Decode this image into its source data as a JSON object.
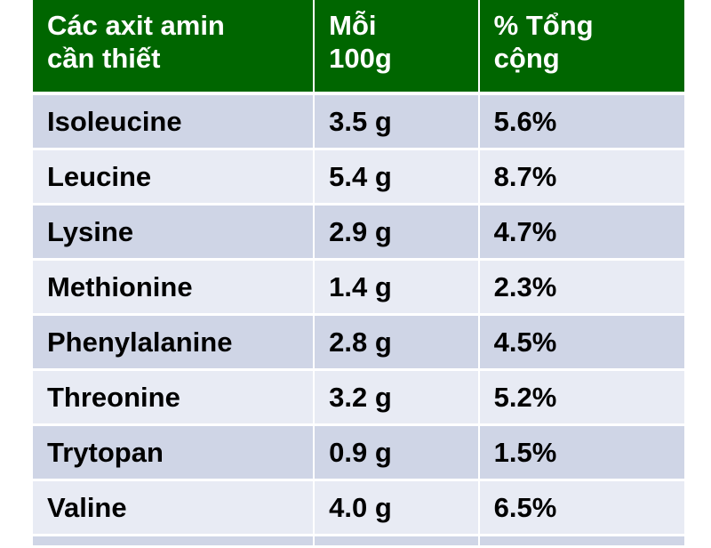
{
  "colors": {
    "header_bg": "#006600",
    "row_odd": "#CFD5E6",
    "row_even": "#E8EBF4"
  },
  "headers": [
    "Các axit amin\ncần thiết",
    "Mỗi\n100g",
    "% Tổng\ncộng"
  ],
  "rows": [
    [
      "Isoleucine",
      "3.5 g",
      "5.6%"
    ],
    [
      "Leucine",
      "5.4 g",
      "8.7%"
    ],
    [
      "Lysine",
      "2.9 g",
      "4.7%"
    ],
    [
      "Methionine",
      "1.4 g",
      "2.3%"
    ],
    [
      "Phenylalanine",
      "2.8 g",
      "4.5%"
    ],
    [
      "Threonine",
      "3.2 g",
      "5.2%"
    ],
    [
      "Trytopan",
      "0.9 g",
      "1.5%"
    ],
    [
      "Valine",
      "4.0 g",
      "6.5%"
    ]
  ]
}
